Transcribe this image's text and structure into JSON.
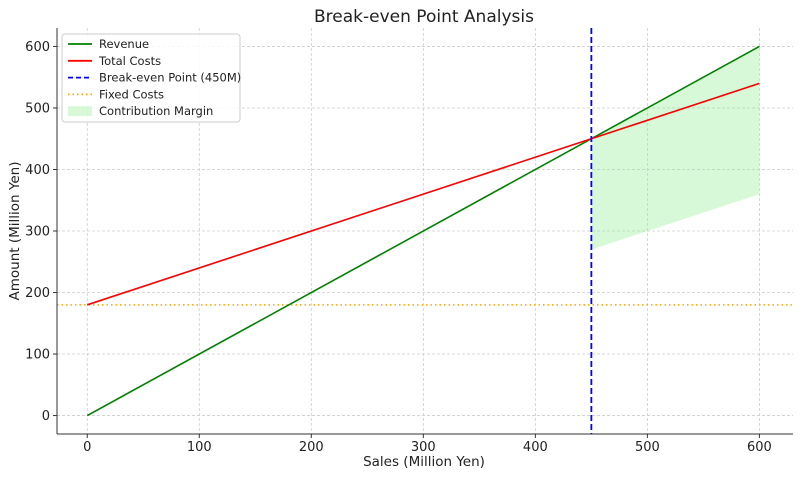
{
  "chart_data": {
    "type": "line",
    "title": "Break-even Point Analysis",
    "xlabel": "Sales (Million Yen)",
    "ylabel": "Amount (Million Yen)",
    "xlim": [
      -27,
      630
    ],
    "ylim": [
      -30,
      630
    ],
    "xticks": [
      0,
      100,
      200,
      300,
      400,
      500,
      600
    ],
    "yticks": [
      0,
      100,
      200,
      300,
      400,
      500,
      600
    ],
    "grid": true,
    "legend_position": "top-left",
    "series": [
      {
        "name": "Revenue",
        "style": "solid",
        "color": "#008000",
        "x": [
          0,
          600
        ],
        "y": [
          0,
          600
        ]
      },
      {
        "name": "Total Costs",
        "style": "solid",
        "color": "#ff0000",
        "x": [
          0,
          600
        ],
        "y": [
          180,
          540
        ]
      }
    ],
    "vline": {
      "name": "Break-even Point (450M)",
      "x": 450,
      "style": "dashed",
      "color": "#0000ff"
    },
    "hline": {
      "name": "Fixed Costs",
      "y": 180,
      "style": "dotted",
      "color": "#ffa500"
    },
    "fill": {
      "name": "Contribution Margin",
      "color": "#90ee90",
      "x": [
        450,
        600
      ],
      "upper": [
        450,
        600
      ],
      "lower": [
        270,
        360
      ]
    }
  }
}
